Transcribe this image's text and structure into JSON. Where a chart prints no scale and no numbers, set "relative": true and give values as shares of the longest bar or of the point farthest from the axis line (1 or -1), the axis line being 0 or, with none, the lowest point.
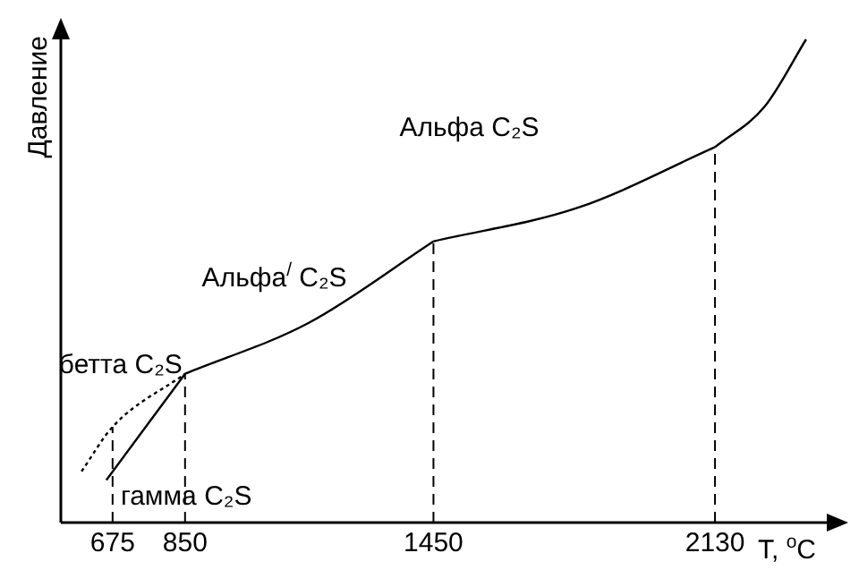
{
  "chart_data": {
    "type": "line",
    "relative": true,
    "xlabel": "T, $^{o}$C",
    "ylabel": "Давление",
    "xlim": [
      550,
      2400
    ],
    "xticks": [
      675,
      850,
      1450,
      2130
    ],
    "grid": false,
    "legend": false,
    "marker": "none",
    "series": [
      {
        "name": "бетта C₂S",
        "color": "#000000",
        "line_style": "dotted",
        "x": [
          600,
          675,
          850
        ],
        "values": [
          0.106,
          0.198,
          0.308
        ]
      },
      {
        "name": "гамма C₂S",
        "color": "#000000",
        "line_style": "solid",
        "x": [
          660,
          850
        ],
        "values": [
          0.088,
          0.308
        ]
      },
      {
        "name": "Альфа$^{/}$ C₂S",
        "color": "#000000",
        "line_style": "solid",
        "x": [
          850,
          1150,
          1450
        ],
        "values": [
          0.308,
          0.414,
          0.582
        ]
      },
      {
        "name": "Альфа C₂S",
        "color": "#000000",
        "line_style": "solid",
        "x": [
          1450,
          1800,
          2130
        ],
        "values": [
          0.582,
          0.652,
          0.777
        ]
      },
      {
        "color": "#000000",
        "line_style": "solid",
        "x": [
          2130,
          2250,
          2350
        ],
        "values": [
          0.777,
          0.861,
          1
        ]
      }
    ],
    "ref_lines": [
      {
        "axis": "x",
        "value": 675,
        "line_style": "dashed"
      },
      {
        "axis": "x",
        "value": 850,
        "line_style": "dashed"
      },
      {
        "axis": "x",
        "value": 1450,
        "line_style": "dashed"
      },
      {
        "axis": "x",
        "value": 2130,
        "line_style": "dashed"
      }
    ]
  }
}
